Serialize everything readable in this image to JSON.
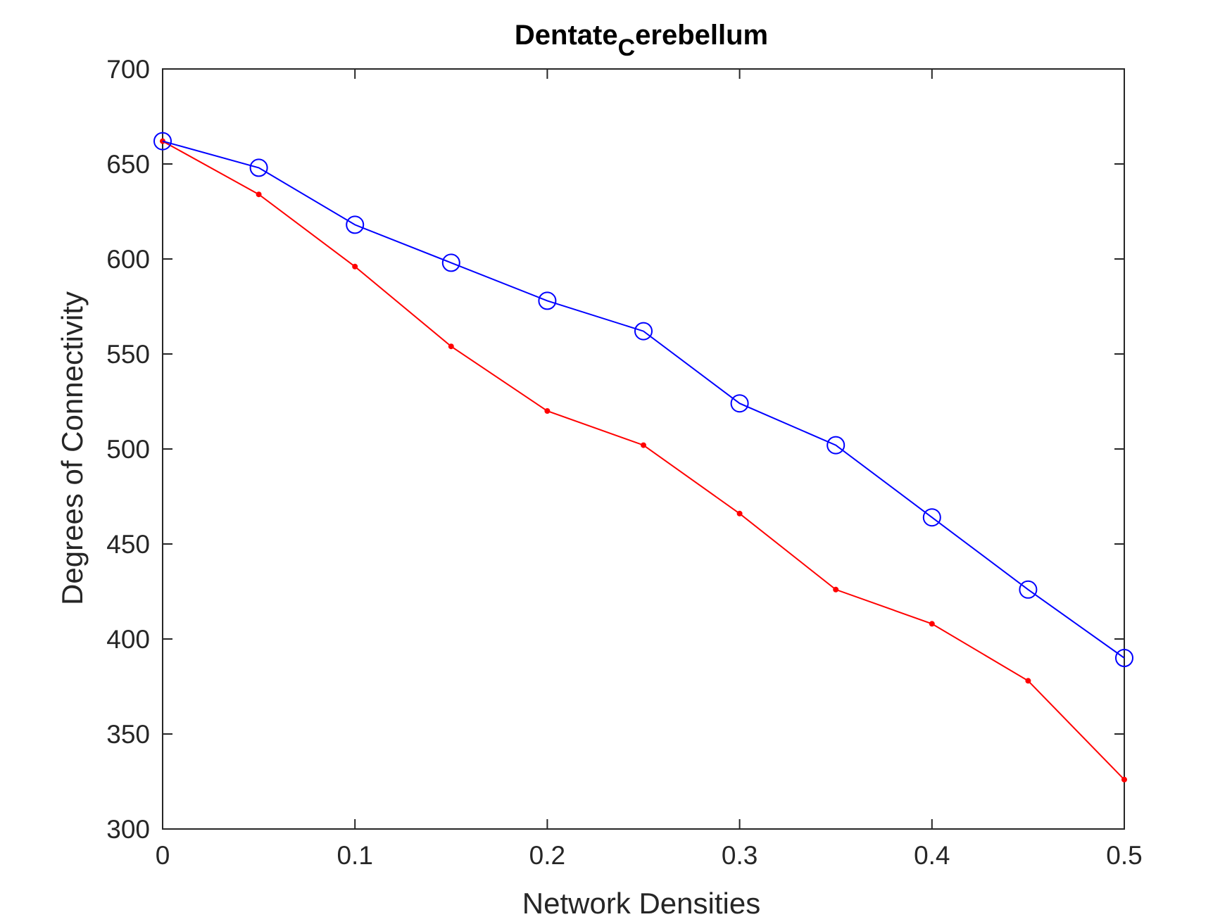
{
  "chart_data": {
    "type": "line",
    "title": "Dentate",
    "title_subscript": "C",
    "title_suffix": "erebellum",
    "xlabel": "Network Densities",
    "ylabel": "Degrees of Connectivity",
    "xlim": [
      0,
      0.5
    ],
    "ylim": [
      300,
      700
    ],
    "x_ticks": [
      0,
      0.1,
      0.2,
      0.3,
      0.4,
      0.5
    ],
    "x_tick_labels": [
      "0",
      "0.1",
      "0.2",
      "0.3",
      "0.4",
      "0.5"
    ],
    "y_ticks": [
      300,
      350,
      400,
      450,
      500,
      550,
      600,
      650,
      700
    ],
    "y_tick_labels": [
      "300",
      "350",
      "400",
      "450",
      "500",
      "550",
      "600",
      "650",
      "700"
    ],
    "grid": false,
    "x": [
      0,
      0.05,
      0.1,
      0.15,
      0.2,
      0.25,
      0.3,
      0.35,
      0.4,
      0.45,
      0.5
    ],
    "series": [
      {
        "color": "#0000ff",
        "marker": "circle",
        "values": [
          662,
          648,
          618,
          598,
          578,
          562,
          524,
          502,
          464,
          426,
          390
        ]
      },
      {
        "color": "#ff0000",
        "marker": "dot",
        "values": [
          662,
          634,
          596,
          554,
          520,
          502,
          466,
          426,
          408,
          378,
          326
        ]
      }
    ]
  }
}
